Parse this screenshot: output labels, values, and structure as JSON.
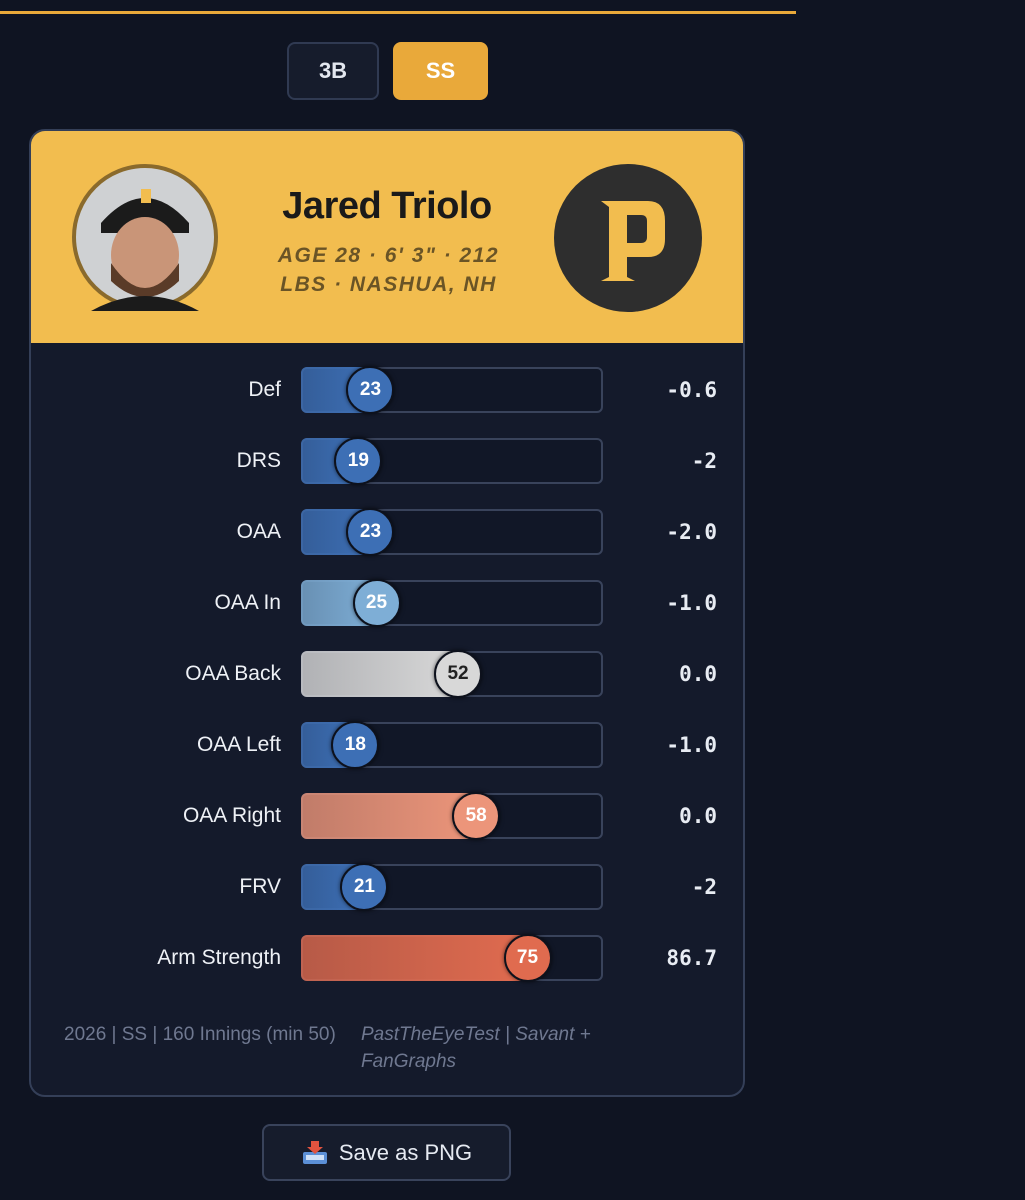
{
  "tabs": [
    "3B",
    "SS"
  ],
  "player": {
    "name": "Jared Triolo",
    "meta": "AGE 28 · 6' 3\" · 212 LBS · NASHUA, NH"
  },
  "rows": [
    {
      "label": "Def",
      "percentile": 23,
      "value": "-0.6",
      "color": "#3d6fb5"
    },
    {
      "label": "DRS",
      "percentile": 19,
      "value": "-2",
      "color": "#3d6fb5"
    },
    {
      "label": "OAA",
      "percentile": 23,
      "value": "-2.0",
      "color": "#3d6fb5"
    },
    {
      "label": "OAA In",
      "percentile": 25,
      "value": "-1.0",
      "color": "#7eaed6"
    },
    {
      "label": "OAA Back",
      "percentile": 52,
      "value": "0.0",
      "color": "#d8d8d8"
    },
    {
      "label": "OAA Left",
      "percentile": 18,
      "value": "-1.0",
      "color": "#3d6fb5"
    },
    {
      "label": "OAA Right",
      "percentile": 58,
      "value": "0.0",
      "color": "#ec957a"
    },
    {
      "label": "FRV",
      "percentile": 21,
      "value": "-2",
      "color": "#3d6fb5"
    },
    {
      "label": "Arm Strength",
      "percentile": 75,
      "value": "86.7",
      "color": "#e06b4f"
    }
  ],
  "footer": {
    "left": "2026 | SS | 160 Innings (min 50)",
    "right": "PastTheEyeTest | Savant + FanGraphs"
  },
  "button": "Save as PNG"
}
